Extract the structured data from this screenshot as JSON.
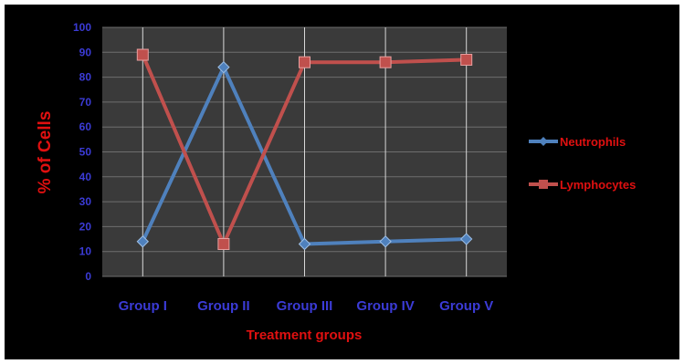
{
  "chart_data": {
    "type": "line",
    "title": "",
    "xlabel": "Treatment groups",
    "ylabel": "% of Cells",
    "categories": [
      "Group I",
      "Group II",
      "Group III",
      "Group IV",
      "Group V"
    ],
    "ylim": [
      0,
      100
    ],
    "yticks": [
      0,
      10,
      20,
      30,
      40,
      50,
      60,
      70,
      80,
      90,
      100
    ],
    "grid": true,
    "legend_position": "right",
    "plot_background": "#3a3a3a",
    "series": [
      {
        "name": "Neutrophils",
        "values": [
          14,
          84,
          13,
          14,
          15
        ],
        "color": "#4f81bd",
        "marker": "diamond"
      },
      {
        "name": "Lymphocytes",
        "values": [
          89,
          13,
          86,
          86,
          87
        ],
        "color": "#c0504d",
        "marker": "square"
      }
    ],
    "colors": {
      "tick_label": "#3b3bd6",
      "axis_title": "#e01010",
      "legend_text": "#e01010"
    }
  }
}
